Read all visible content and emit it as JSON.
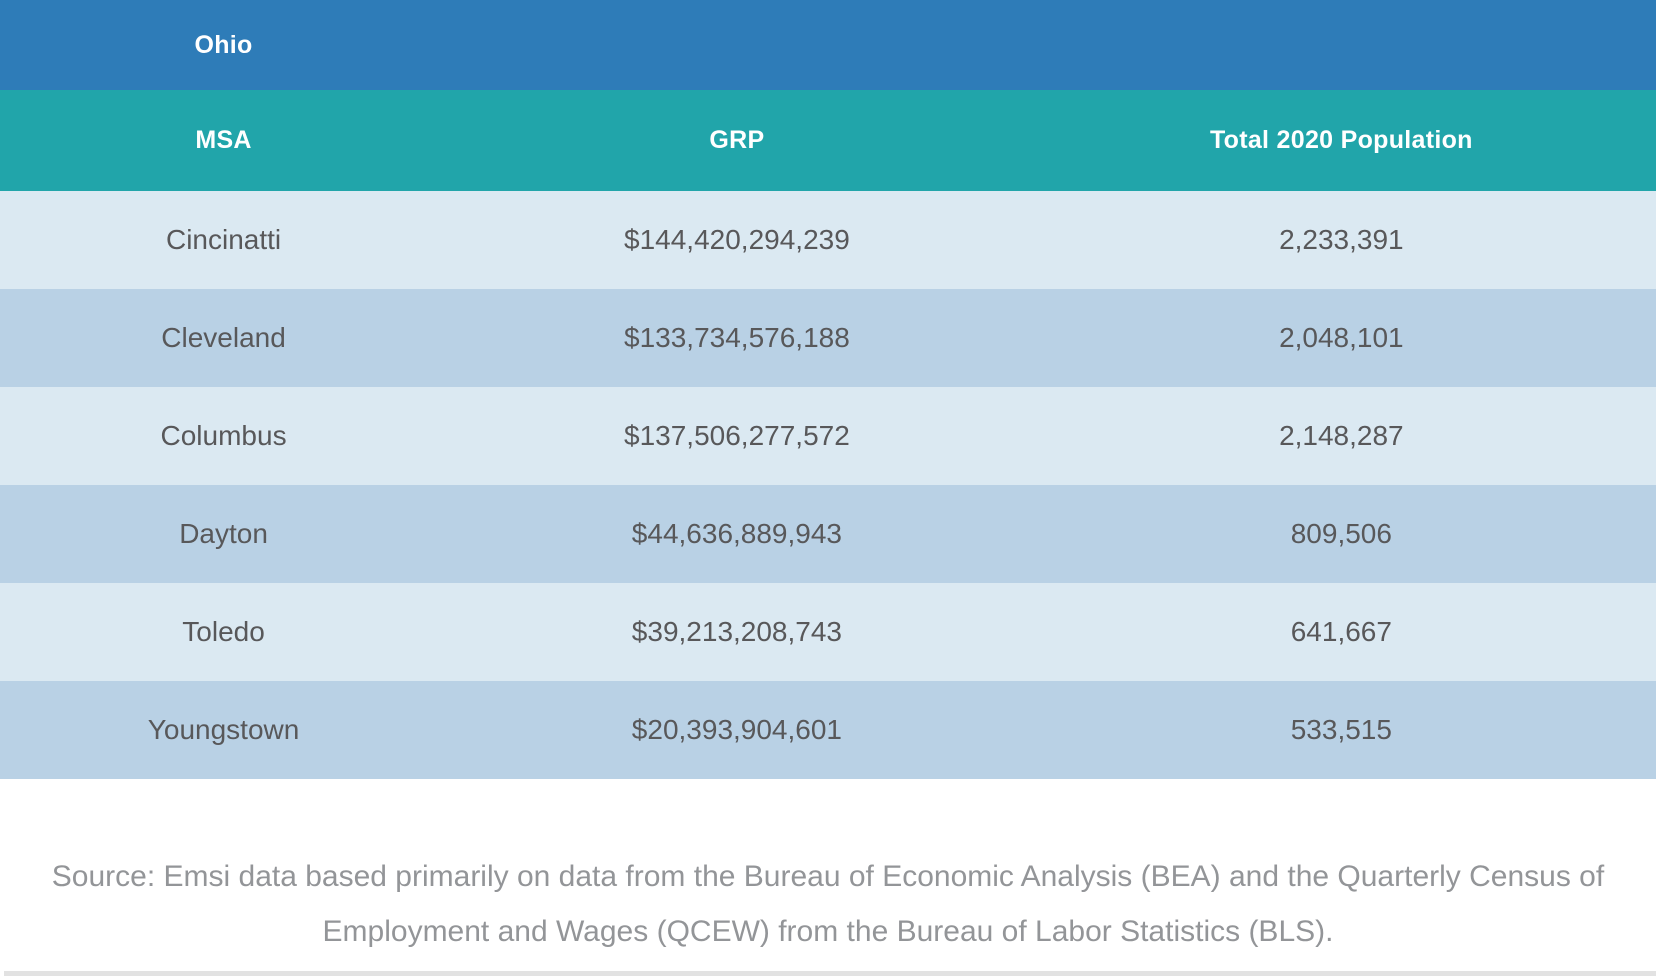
{
  "table": {
    "state_header": "Ohio",
    "columns": {
      "msa": "MSA",
      "grp": "GRP",
      "population": "Total 2020 Population"
    },
    "rows": [
      {
        "msa": "Cincinatti",
        "grp": "$144,420,294,239",
        "population": "2,233,391"
      },
      {
        "msa": "Cleveland",
        "grp": "$133,734,576,188",
        "population": "2,048,101"
      },
      {
        "msa": "Columbus",
        "grp": "$137,506,277,572",
        "population": "2,148,287"
      },
      {
        "msa": "Dayton",
        "grp": "$44,636,889,943",
        "population": "809,506"
      },
      {
        "msa": "Toledo",
        "grp": "$39,213,208,743",
        "population": "641,667"
      },
      {
        "msa": "Youngstown",
        "grp": "$20,393,904,601",
        "population": "533,515"
      }
    ]
  },
  "source_note": "Source: Emsi data based primarily on data from the Bureau of Economic Analysis (BEA) and the Quarterly Census of Employment and Wages (QCEW) from the Bureau of Labor Statistics (BLS).",
  "colors": {
    "state_bar": "#2e7cb8",
    "header_bar": "#21a5aa",
    "row_light": "#dbe9f2",
    "row_dark": "#b9d1e5",
    "cell_text": "#58585a",
    "source_text": "#939598",
    "divider": "#e2e2e2"
  },
  "chart_data": {
    "type": "table",
    "title": "Ohio",
    "columns": [
      "MSA",
      "GRP",
      "Total 2020 Population"
    ],
    "rows": [
      [
        "Cincinatti",
        "$144,420,294,239",
        "2,233,391"
      ],
      [
        "Cleveland",
        "$133,734,576,188",
        "2,048,101"
      ],
      [
        "Columbus",
        "$137,506,277,572",
        "2,148,287"
      ],
      [
        "Dayton",
        "$44,636,889,943",
        "809,506"
      ],
      [
        "Toledo",
        "$39,213,208,743",
        "641,667"
      ],
      [
        "Youngstown",
        "$20,393,904,601",
        "533,515"
      ]
    ],
    "grp_values": [
      144420294239,
      133734576188,
      137506277572,
      44636889943,
      39213208743,
      20393904601
    ],
    "population_values": [
      2233391,
      2048101,
      2148287,
      809506,
      641667,
      533515
    ]
  }
}
